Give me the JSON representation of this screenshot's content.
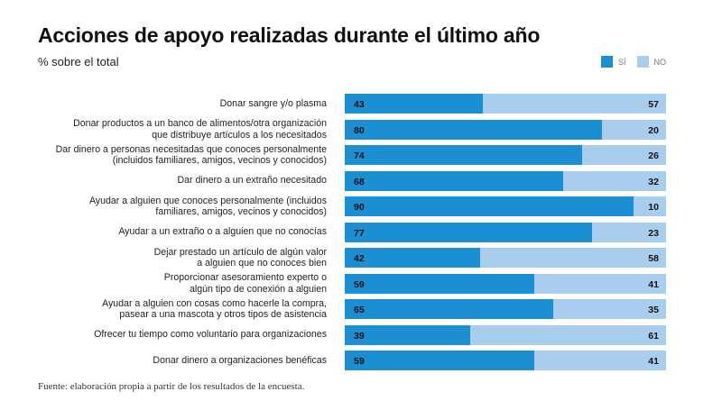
{
  "chart_data": {
    "type": "bar",
    "orientation": "horizontal-stacked",
    "title": "Acciones de apoyo realizadas durante el último año",
    "subtitle": "% sobre el total",
    "legend": [
      {
        "name": "SÍ",
        "color": "#1b8fd2"
      },
      {
        "name": "NO",
        "color": "#a9cdec"
      }
    ],
    "categories": [
      "Donar sangre y/o plasma",
      "Donar productos a un banco de alimentos/otra organización\nque distribuye artículos a los necesitados",
      "Dar dinero a personas necesitadas que conoces personalmente\n(incluidos familiares, amigos, vecinos y conocidos)",
      "Dar dinero a un extraño necesitado",
      "Ayudar a alguien que conoces personalmente (incluidos\nfamiliares, amigos, vecinos y conocidos)",
      "Ayudar a un extraño o a alguien que no conocías",
      "Dejar prestado un artículo de algún valor\na alguien que no conoces bien",
      "Proporcionar asesoramiento experto o\nalgún tipo de conexión a alguien",
      "Ayudar a alguien con cosas como hacerle la compra,\npasear a una mascota y otros tipos de asistencia",
      "Ofrecer tu tiempo como voluntario para organizaciones",
      "Donar dinero a organizaciones benéficas"
    ],
    "series": [
      {
        "name": "SÍ",
        "values": [
          43,
          80,
          74,
          68,
          90,
          77,
          42,
          59,
          65,
          39,
          59
        ]
      },
      {
        "name": "NO",
        "values": [
          57,
          20,
          26,
          32,
          10,
          23,
          58,
          41,
          35,
          61,
          41
        ]
      }
    ],
    "xlim": [
      0,
      100
    ],
    "source": "Fuente: elaboración propia a partir de los resultados de la encuesta."
  }
}
